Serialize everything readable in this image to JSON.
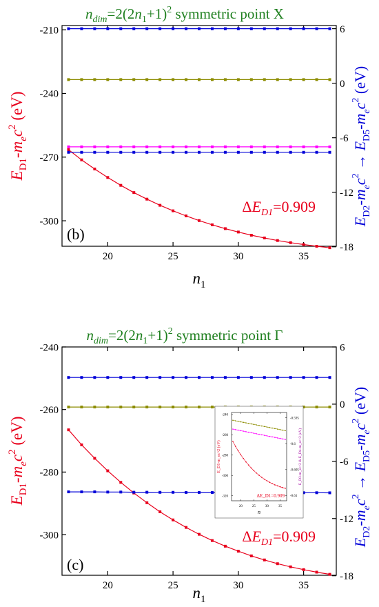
{
  "chart_data": [
    {
      "type": "line",
      "title": "n_dim=2(2n_1+1)^2 symmetric point X",
      "title_parts": {
        "n": "n",
        "dim_sub": "dim",
        "eq": "=2(2",
        "n1": "n",
        "one_sub": "1",
        "plus": "+1)",
        "sq": "2",
        "rest": " symmetric point X"
      },
      "panel_label": "(b)",
      "xlabel": {
        "main": "n",
        "sub": "1"
      },
      "ylabel_left": {
        "E": "E",
        "D1": "D1",
        "dash": "-",
        "m": "m",
        "e": "e",
        "c": "c",
        "two": "2",
        "unit": " (eV)"
      },
      "ylabel_right": {
        "E2": "E",
        "D2": "D2",
        "dash": "-",
        "m": "m",
        "e": "e",
        "c": "c",
        "two": "2",
        "arrow": " → ",
        "E5": "E",
        "D5": "D5",
        "unit": " (eV)"
      },
      "annotation": {
        "delta": "Δ",
        "E": "E",
        "sub": "D1",
        "value": "=0.909"
      },
      "xlim": [
        16.5,
        37.5
      ],
      "ylim_left": [
        -312,
        -208
      ],
      "ylim_right": [
        -17.94,
        6.35
      ],
      "x_ticks": [
        20,
        25,
        30,
        35
      ],
      "y_left_ticks": [
        -210,
        -240,
        -270,
        -300
      ],
      "y_right_ticks": [
        6,
        0,
        -6,
        -12,
        -18
      ],
      "x": [
        17,
        18,
        19,
        20,
        21,
        22,
        23,
        24,
        25,
        26,
        27,
        28,
        29,
        30,
        31,
        32,
        33,
        34,
        35,
        36,
        37
      ],
      "series": [
        {
          "axis": "left",
          "color": "#e8001c",
          "values": [
            -266.5,
            -271.3,
            -275.6,
            -279.6,
            -283.3,
            -286.7,
            -289.8,
            -292.7,
            -295.3,
            -297.7,
            -299.9,
            -301.9,
            -303.7,
            -305.3,
            -306.8,
            -308.1,
            -309.3,
            -310.3,
            -311.2,
            -312.0,
            -312.7
          ]
        },
        {
          "axis": "right",
          "color": "#0000d8",
          "values": [
            6,
            6,
            6,
            6,
            6,
            6,
            6,
            6,
            6,
            6,
            6,
            6,
            6,
            6,
            6,
            6,
            6,
            6,
            6,
            6,
            6
          ]
        },
        {
          "axis": "right",
          "color": "#8c8c00",
          "values": [
            0.4,
            0.4,
            0.4,
            0.4,
            0.4,
            0.4,
            0.4,
            0.4,
            0.4,
            0.4,
            0.4,
            0.4,
            0.4,
            0.4,
            0.4,
            0.4,
            0.4,
            0.4,
            0.4,
            0.4,
            0.4
          ]
        },
        {
          "axis": "right",
          "color": "#ff00ff",
          "values": [
            -7.0,
            -7.0,
            -7.0,
            -7.0,
            -7.0,
            -7.0,
            -7.0,
            -7.0,
            -7.0,
            -7.0,
            -7.0,
            -7.0,
            -7.0,
            -7.0,
            -7.0,
            -7.0,
            -7.0,
            -7.0,
            -7.0,
            -7.0,
            -7.0
          ]
        },
        {
          "axis": "right",
          "color": "#0000d8",
          "values": [
            -7.6,
            -7.6,
            -7.6,
            -7.6,
            -7.6,
            -7.6,
            -7.6,
            -7.6,
            -7.6,
            -7.6,
            -7.6,
            -7.6,
            -7.6,
            -7.6,
            -7.6,
            -7.6,
            -7.6,
            -7.6,
            -7.6,
            -7.6,
            -7.6
          ]
        }
      ]
    },
    {
      "type": "line",
      "title": "n_dim=2(2n_1+1)^2 symmetric point Γ",
      "title_parts": {
        "n": "n",
        "dim_sub": "dim",
        "eq": "=2(2",
        "n1": "n",
        "one_sub": "1",
        "plus": "+1)",
        "sq": "2",
        "rest": " symmetric point Γ"
      },
      "panel_label": "(c)",
      "xlabel": {
        "main": "n",
        "sub": "1"
      },
      "ylabel_left": {
        "E": "E",
        "D1": "D1",
        "dash": "-",
        "m": "m",
        "e": "e",
        "c": "c",
        "two": "2",
        "unit": " (eV)"
      },
      "ylabel_right": {
        "E2": "E",
        "D2": "D2",
        "dash": "-",
        "m": "m",
        "e": "e",
        "c": "c",
        "two": "2",
        "arrow": " → ",
        "E5": "E",
        "D5": "D5",
        "unit": " (eV)"
      },
      "annotation": {
        "delta": "Δ",
        "E": "E",
        "sub": "D1",
        "value": "=0.909"
      },
      "xlim": [
        16.5,
        37.5
      ],
      "ylim_left": [
        -313,
        -240
      ],
      "ylim_right": [
        -17.95,
        6.0
      ],
      "x_ticks": [
        20,
        25,
        30,
        35
      ],
      "y_left_ticks": [
        -240,
        -260,
        -280,
        -300
      ],
      "y_right_ticks": [
        6,
        0,
        -6,
        -12,
        -18
      ],
      "x": [
        17,
        18,
        19,
        20,
        21,
        22,
        23,
        24,
        25,
        26,
        27,
        28,
        29,
        30,
        31,
        32,
        33,
        34,
        35,
        36,
        37
      ],
      "series": [
        {
          "axis": "left",
          "color": "#e8001c",
          "values": [
            -266.5,
            -271.3,
            -275.6,
            -279.6,
            -283.3,
            -286.7,
            -289.8,
            -292.7,
            -295.3,
            -297.7,
            -299.9,
            -301.9,
            -303.7,
            -305.3,
            -306.8,
            -308.1,
            -309.3,
            -310.3,
            -311.2,
            -312.0,
            -312.7
          ]
        },
        {
          "axis": "right",
          "color": "#0000d8",
          "values": [
            2.8,
            2.8,
            2.8,
            2.8,
            2.8,
            2.8,
            2.8,
            2.8,
            2.8,
            2.8,
            2.8,
            2.8,
            2.8,
            2.8,
            2.8,
            2.8,
            2.8,
            2.8,
            2.8,
            2.8,
            2.8
          ]
        },
        {
          "axis": "right",
          "color": "#8c8c00",
          "values": [
            -0.3,
            -0.3,
            -0.3,
            -0.3,
            -0.3,
            -0.3,
            -0.3,
            -0.3,
            -0.3,
            -0.3,
            -0.3,
            -0.3,
            -0.3,
            -0.3,
            -0.3,
            -0.3,
            -0.3,
            -0.3,
            -0.3,
            -0.3,
            -0.3
          ]
        },
        {
          "axis": "right",
          "color": "#0000d8",
          "values": [
            -9.2,
            -9.2,
            -9.2,
            -9.22,
            -9.22,
            -9.24,
            -9.24,
            -9.25,
            -9.25,
            -9.26,
            -9.26,
            -9.27,
            -9.27,
            -9.27,
            -9.28,
            -9.28,
            -9.28,
            -9.29,
            -9.29,
            -9.29,
            -9.3
          ]
        }
      ],
      "inset": {
        "x_ticks": [
          20,
          25,
          30,
          35
        ],
        "y_left_ticks": [
          -240,
          -260,
          -280,
          -300,
          -320
        ],
        "y_right_ticks": [
          -0.595,
          -0.6,
          -0.605,
          -0.61
        ],
        "xlim": [
          16.5,
          37.5
        ],
        "ylim_left": [
          -325,
          -238
        ],
        "ylim_right": [
          -0.611,
          -0.594
        ],
        "xlabel": "n",
        "ylabel_left": "E_D1-m_ec^2 (eV)",
        "ylabel_right": "E_D3-m_ec^2 & E_D4-m_ec^2 (eV)",
        "annotation": "ΔE_D1=0.909",
        "series": [
          {
            "axis": "left",
            "color": "#e8001c",
            "values": [
              -266.5,
              -271.3,
              -275.6,
              -279.6,
              -283.3,
              -286.7,
              -289.8,
              -292.7,
              -295.3,
              -297.7,
              -299.9,
              -301.9,
              -303.7,
              -305.3,
              -306.8,
              -308.1,
              -309.3,
              -310.3,
              -311.2,
              -312.0,
              -312.7
            ]
          },
          {
            "axis": "right",
            "color": "#8c8c00",
            "values": [
              -0.5955,
              -0.5956,
              -0.5957,
              -0.5958,
              -0.5959,
              -0.596,
              -0.5961,
              -0.5962,
              -0.5963,
              -0.5964,
              -0.5965,
              -0.5966,
              -0.5967,
              -0.5968,
              -0.5969,
              -0.597,
              -0.5971,
              -0.5972,
              -0.5973,
              -0.5974,
              -0.5975
            ]
          },
          {
            "axis": "right",
            "color": "#ff00ff",
            "values": [
              -0.5972,
              -0.5973,
              -0.5974,
              -0.5975,
              -0.5976,
              -0.5977,
              -0.5978,
              -0.5979,
              -0.598,
              -0.5981,
              -0.5982,
              -0.5983,
              -0.5984,
              -0.5985,
              -0.5986,
              -0.5987,
              -0.5988,
              -0.5989,
              -0.599,
              -0.5991,
              -0.5992
            ]
          }
        ]
      }
    }
  ]
}
